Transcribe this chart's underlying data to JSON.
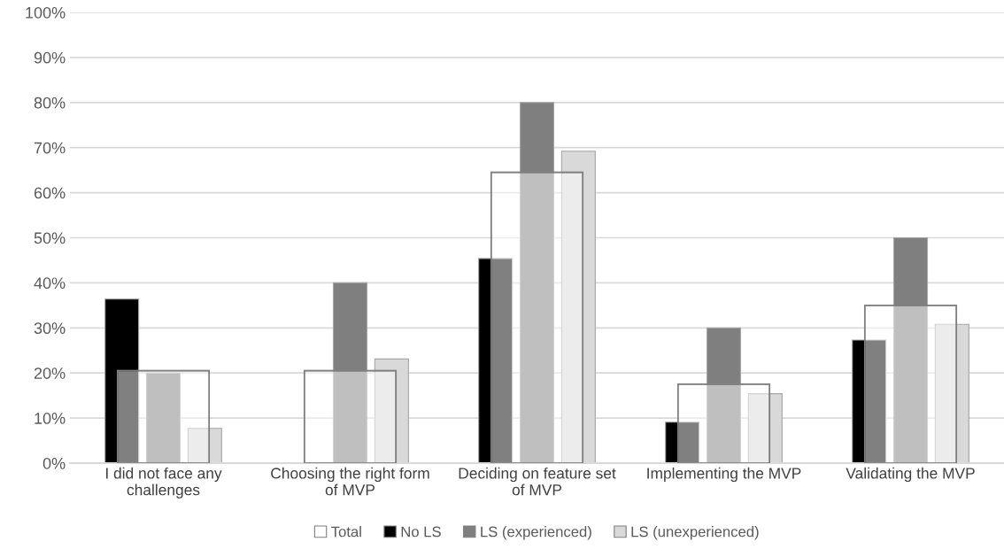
{
  "chart_data": {
    "type": "bar",
    "categories": [
      "I did not face any challenges",
      "Choosing the right form of MVP",
      "Deciding on feature set of MVP",
      "Implementing the MVP",
      "Validating the MVP"
    ],
    "series": [
      {
        "name": "Total",
        "color": "#ffffff",
        "values": [
          20.5,
          20.5,
          64.5,
          17.5,
          35.0
        ]
      },
      {
        "name": "No LS",
        "color": "#000000",
        "values": [
          36.4,
          0,
          45.4,
          9.1,
          27.3
        ]
      },
      {
        "name": "LS (experienced)",
        "color": "#7f7f7f",
        "values": [
          20.0,
          40.0,
          80.0,
          30.0,
          50.0
        ]
      },
      {
        "name": "LS (unexperienced)",
        "color": "#d9d9d9",
        "values": [
          7.7,
          23.1,
          69.2,
          15.4,
          30.8
        ]
      }
    ],
    "ylim": [
      0,
      100
    ],
    "yticks": [
      {
        "value": 0,
        "label": "0%"
      },
      {
        "value": 10,
        "label": "10%"
      },
      {
        "value": 20,
        "label": "20%"
      },
      {
        "value": 30,
        "label": "30%"
      },
      {
        "value": 40,
        "label": "40%"
      },
      {
        "value": 50,
        "label": "50%"
      },
      {
        "value": 60,
        "label": "60%"
      },
      {
        "value": 70,
        "label": "70%"
      },
      {
        "value": 80,
        "label": "80%"
      },
      {
        "value": 90,
        "label": "90%"
      },
      {
        "value": 100,
        "label": "100%"
      }
    ],
    "grid": "y",
    "legend": "bottom"
  }
}
